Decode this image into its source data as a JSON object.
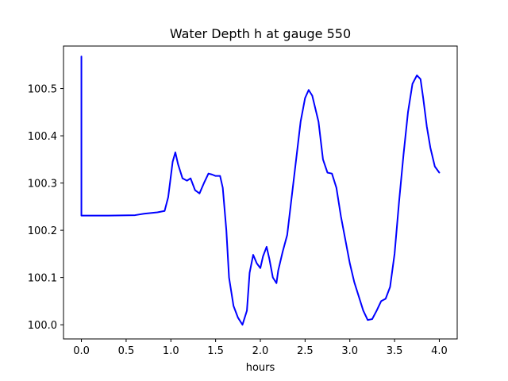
{
  "chart_data": {
    "type": "line",
    "title": "Water Depth h at gauge 550",
    "xlabel": "hours",
    "ylabel": "",
    "xlim": [
      -0.2,
      4.2
    ],
    "ylim": [
      99.97,
      100.59
    ],
    "grid": false,
    "legend": "none",
    "x_ticks": [
      0.0,
      0.5,
      1.0,
      1.5,
      2.0,
      2.5,
      3.0,
      3.5,
      4.0
    ],
    "x_tick_labels": [
      "0.0",
      "0.5",
      "1.0",
      "1.5",
      "2.0",
      "2.5",
      "3.0",
      "3.5",
      "4.0"
    ],
    "y_ticks": [
      100.0,
      100.1,
      100.2,
      100.3,
      100.4,
      100.5
    ],
    "y_tick_labels": [
      "100.0",
      "100.1",
      "100.2",
      "100.3",
      "100.4",
      "100.5"
    ],
    "series": [
      {
        "color": "#0000ff",
        "x": [
          0.0,
          0.0,
          0.0,
          0.3,
          0.6,
          0.7,
          0.85,
          0.93,
          0.97,
          1.02,
          1.05,
          1.08,
          1.13,
          1.18,
          1.22,
          1.27,
          1.32,
          1.37,
          1.42,
          1.46,
          1.5,
          1.55,
          1.58,
          1.62,
          1.65,
          1.7,
          1.75,
          1.8,
          1.85,
          1.88,
          1.92,
          1.96,
          2.0,
          2.03,
          2.07,
          2.1,
          2.14,
          2.18,
          2.2,
          2.25,
          2.3,
          2.35,
          2.4,
          2.45,
          2.5,
          2.54,
          2.58,
          2.65,
          2.7,
          2.75,
          2.8,
          2.85,
          2.9,
          2.95,
          3.0,
          3.05,
          3.1,
          3.15,
          3.2,
          3.25,
          3.3,
          3.35,
          3.4,
          3.45,
          3.5,
          3.55,
          3.6,
          3.65,
          3.7,
          3.75,
          3.79,
          3.82,
          3.86,
          3.9,
          3.95,
          4.0
        ],
        "y": [
          100.568,
          100.4,
          100.231,
          100.231,
          100.232,
          100.235,
          100.238,
          100.241,
          100.27,
          100.345,
          100.365,
          100.34,
          100.31,
          100.305,
          100.31,
          100.285,
          100.278,
          100.3,
          100.32,
          100.318,
          100.315,
          100.315,
          100.29,
          100.2,
          100.1,
          100.04,
          100.015,
          100.0,
          100.03,
          100.11,
          100.148,
          100.13,
          100.12,
          100.145,
          100.165,
          100.14,
          100.1,
          100.088,
          100.115,
          100.155,
          100.19,
          100.27,
          100.35,
          100.43,
          100.48,
          100.497,
          100.485,
          100.43,
          100.35,
          100.322,
          100.32,
          100.29,
          100.23,
          100.18,
          100.13,
          100.09,
          100.06,
          100.03,
          100.01,
          100.012,
          100.03,
          100.05,
          100.055,
          100.08,
          100.15,
          100.26,
          100.36,
          100.45,
          100.51,
          100.528,
          100.52,
          100.48,
          100.42,
          100.375,
          100.335,
          100.322
        ]
      }
    ]
  }
}
